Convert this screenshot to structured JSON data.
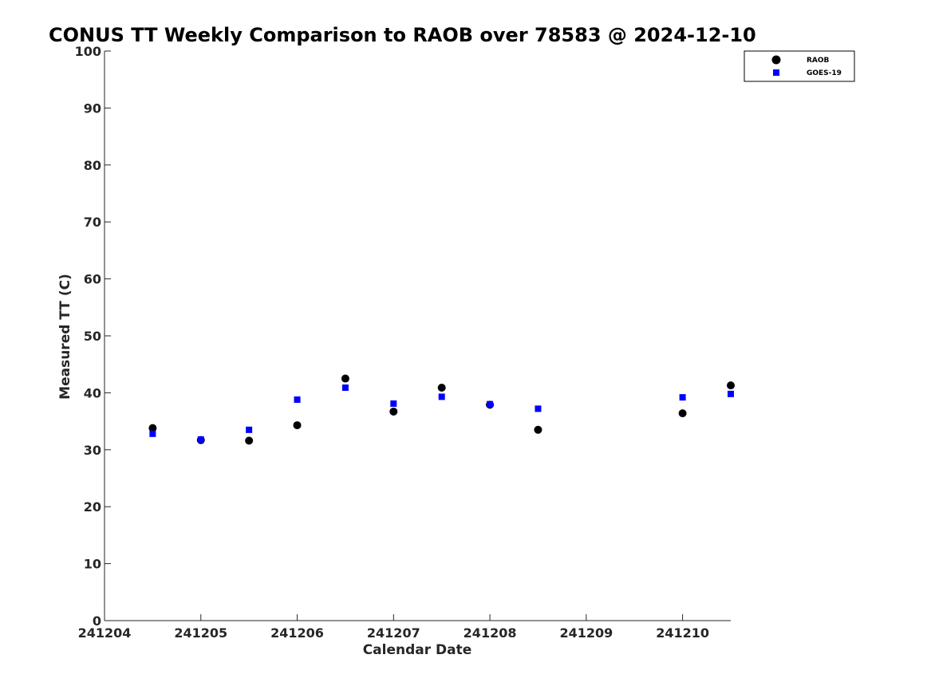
{
  "chart_data": {
    "type": "scatter",
    "title": "CONUS TT Weekly Comparison to RAOB over 78583 @ 2024-12-10",
    "xlabel": "Calendar Date",
    "ylabel": "Measured TT (C)",
    "x_ticks": [
      "241204",
      "241205",
      "241206",
      "241207",
      "241208",
      "241209",
      "241210"
    ],
    "xlim": [
      "2024-12-04 00:00",
      "2024-12-10 12:00"
    ],
    "ylim": [
      0,
      100
    ],
    "y_ticks": [
      0,
      10,
      20,
      30,
      40,
      50,
      60,
      70,
      80,
      90,
      100
    ],
    "legend_position": "top-right",
    "series": [
      {
        "name": "RAOB",
        "marker": "circle",
        "color": "#000000",
        "points": [
          {
            "x": "2024-12-04 12:00",
            "y": 33.8
          },
          {
            "x": "2024-12-05 00:00",
            "y": 31.7
          },
          {
            "x": "2024-12-05 12:00",
            "y": 31.6
          },
          {
            "x": "2024-12-06 00:00",
            "y": 34.3
          },
          {
            "x": "2024-12-06 12:00",
            "y": 42.5
          },
          {
            "x": "2024-12-07 00:00",
            "y": 36.7
          },
          {
            "x": "2024-12-07 12:00",
            "y": 40.9
          },
          {
            "x": "2024-12-08 00:00",
            "y": 37.9
          },
          {
            "x": "2024-12-08 12:00",
            "y": 33.5
          },
          {
            "x": "2024-12-10 00:00",
            "y": 36.4
          },
          {
            "x": "2024-12-10 12:00",
            "y": 41.3
          }
        ]
      },
      {
        "name": "GOES-19",
        "marker": "square",
        "color": "#0000ff",
        "points": [
          {
            "x": "2024-12-04 12:00",
            "y": 32.8
          },
          {
            "x": "2024-12-05 00:00",
            "y": 31.8
          },
          {
            "x": "2024-12-05 12:00",
            "y": 33.5
          },
          {
            "x": "2024-12-06 00:00",
            "y": 38.8
          },
          {
            "x": "2024-12-06 12:00",
            "y": 40.9
          },
          {
            "x": "2024-12-07 00:00",
            "y": 38.1
          },
          {
            "x": "2024-12-07 12:00",
            "y": 39.3
          },
          {
            "x": "2024-12-08 00:00",
            "y": 38.0
          },
          {
            "x": "2024-12-08 12:00",
            "y": 37.2
          },
          {
            "x": "2024-12-10 00:00",
            "y": 39.2
          },
          {
            "x": "2024-12-10 12:00",
            "y": 39.8
          }
        ]
      }
    ]
  }
}
